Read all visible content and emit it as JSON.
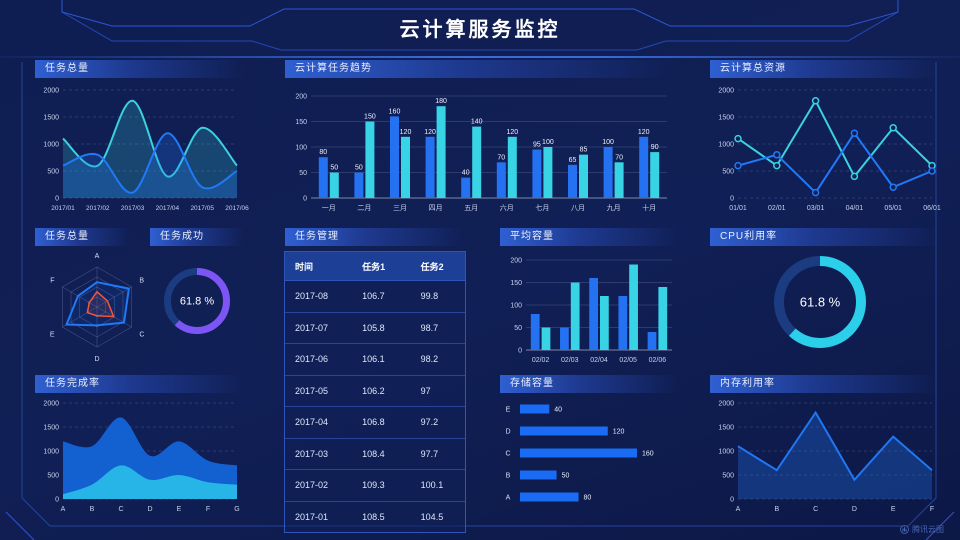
{
  "title": "云计算服务监控",
  "watermark": "腾讯云图",
  "colors": {
    "background": "#0f1e52",
    "blue_series": "#2472f2",
    "cyan_series": "#38d3e4",
    "purple_donut": "#7d55f4",
    "cyan_donut": "#2bcfe9",
    "donut_track": "#1c3c82",
    "bar_blue": "#1a6cf5",
    "radar_orange": "#f4553a",
    "accent_line": "#2d56d6"
  },
  "table": {
    "panel_title": "任务管理",
    "headers": [
      "时间",
      "任务1",
      "任务2"
    ],
    "rows": [
      [
        "2017-08",
        "106.7",
        "99.8"
      ],
      [
        "2017-07",
        "105.8",
        "98.7"
      ],
      [
        "2017-06",
        "106.1",
        "98.2"
      ],
      [
        "2017-05",
        "106.2",
        "97"
      ],
      [
        "2017-04",
        "106.8",
        "97.2"
      ],
      [
        "2017-03",
        "108.4",
        "97.7"
      ],
      [
        "2017-02",
        "109.3",
        "100.1"
      ],
      [
        "2017-01",
        "108.5",
        "104.5"
      ]
    ]
  },
  "chart_data": [
    {
      "id": "tasks-total",
      "panel_title": "任务总量",
      "type": "area",
      "smooth": true,
      "x": [
        "2017/01",
        "2017/02",
        "2017/03",
        "2017/04",
        "2017/05",
        "2017/06"
      ],
      "yticks": [
        0,
        500,
        1000,
        1500,
        2000
      ],
      "ylim": [
        0,
        2000
      ],
      "series": [
        {
          "name": "cyan",
          "color": "#3bd2df",
          "fill_opacity": 0.22,
          "values": [
            1100,
            600,
            1800,
            400,
            1300,
            600
          ]
        },
        {
          "name": "blue",
          "color": "#2079f6",
          "fill_opacity": 0.25,
          "values": [
            600,
            800,
            100,
            1200,
            200,
            500
          ]
        }
      ]
    },
    {
      "id": "task-trend",
      "panel_title": "云计算任务趋势",
      "type": "bar",
      "value_labels": true,
      "categories": [
        "一月",
        "二月",
        "三月",
        "四月",
        "五月",
        "六月",
        "七月",
        "八月",
        "九月",
        "十月"
      ],
      "yticks": [
        0,
        50,
        100,
        150,
        200
      ],
      "ylim": [
        0,
        200
      ],
      "series": [
        {
          "name": "blue",
          "color": "#2472f2",
          "values": [
            80,
            50,
            160,
            120,
            40,
            70,
            95,
            65,
            100,
            120
          ]
        },
        {
          "name": "cyan",
          "color": "#38d3e4",
          "values": [
            50,
            150,
            120,
            180,
            140,
            120,
            100,
            85,
            70,
            90
          ]
        }
      ]
    },
    {
      "id": "cloud-resources",
      "panel_title": "云计算总资源",
      "type": "line",
      "markers": true,
      "smooth": false,
      "x": [
        "01/01",
        "02/01",
        "03/01",
        "04/01",
        "05/01",
        "06/01"
      ],
      "yticks": [
        0,
        500,
        1000,
        1500,
        2000
      ],
      "ylim": [
        0,
        2000
      ],
      "series": [
        {
          "name": "cyan",
          "color": "#3bd2df",
          "values": [
            1100,
            600,
            1800,
            400,
            1300,
            600
          ]
        },
        {
          "name": "blue",
          "color": "#2079f6",
          "values": [
            600,
            800,
            100,
            1200,
            200,
            500
          ]
        }
      ]
    },
    {
      "id": "tasks-radar",
      "panel_title": "任务总量",
      "type": "radar",
      "axes": [
        "A",
        "B",
        "C",
        "D",
        "E",
        "F"
      ],
      "max": 100,
      "series": [
        {
          "name": "blue",
          "color": "#2079f6",
          "values": [
            62,
            92,
            78,
            46,
            88,
            55
          ]
        },
        {
          "name": "orange",
          "color": "#f4553a",
          "values": [
            38,
            30,
            48,
            22,
            28,
            22
          ]
        }
      ]
    },
    {
      "id": "task-success",
      "panel_title": "任务成功",
      "type": "donut",
      "value": "61.8 %",
      "percent": 61.8,
      "color": "#7d55f4"
    },
    {
      "id": "avg-capacity",
      "panel_title": "平均容量",
      "type": "bar",
      "value_labels": false,
      "categories": [
        "02/02",
        "02/03",
        "02/04",
        "02/05",
        "02/06"
      ],
      "yticks": [
        0,
        50,
        100,
        150,
        200
      ],
      "ylim": [
        0,
        200
      ],
      "series": [
        {
          "name": "blue",
          "color": "#2472f2",
          "values": [
            80,
            50,
            160,
            120,
            40
          ]
        },
        {
          "name": "cyan",
          "color": "#38d3e4",
          "values": [
            50,
            150,
            120,
            190,
            140
          ]
        }
      ]
    },
    {
      "id": "cpu-usage",
      "panel_title": "CPU利用率",
      "type": "donut",
      "value": "61.8 %",
      "percent": 61.8,
      "color": "#2bcfe9"
    },
    {
      "id": "completion",
      "panel_title": "任务完成率",
      "type": "area",
      "smooth": true,
      "x": [
        "A",
        "B",
        "C",
        "D",
        "E",
        "F",
        "G"
      ],
      "yticks": [
        0,
        500,
        1000,
        1500,
        2000
      ],
      "ylim": [
        0,
        2000
      ],
      "series": [
        {
          "name": "blue",
          "color": "#1464d8",
          "fill_opacity": 0.95,
          "no_line": true,
          "values": [
            1200,
            1100,
            1700,
            900,
            1200,
            800,
            700
          ]
        },
        {
          "name": "cyan",
          "color": "#27b4e6",
          "fill_opacity": 1,
          "no_line": true,
          "values": [
            100,
            300,
            700,
            400,
            500,
            350,
            300
          ]
        }
      ]
    },
    {
      "id": "storage",
      "panel_title": "存储容量",
      "type": "hbar",
      "max": 175,
      "categories": [
        "E",
        "D",
        "C",
        "B",
        "A"
      ],
      "values": [
        40,
        120,
        160,
        50,
        80
      ],
      "color": "#1a6cf5"
    },
    {
      "id": "memory",
      "panel_title": "内存利用率",
      "type": "area",
      "smooth": false,
      "x": [
        "A",
        "B",
        "C",
        "D",
        "E",
        "F"
      ],
      "yticks": [
        0,
        500,
        1000,
        1500,
        2000
      ],
      "ylim": [
        0,
        2000
      ],
      "series": [
        {
          "name": "blue",
          "color": "#2176f3",
          "fill_opacity": 0.3,
          "values": [
            1100,
            600,
            1800,
            400,
            1300,
            600
          ]
        }
      ]
    }
  ]
}
